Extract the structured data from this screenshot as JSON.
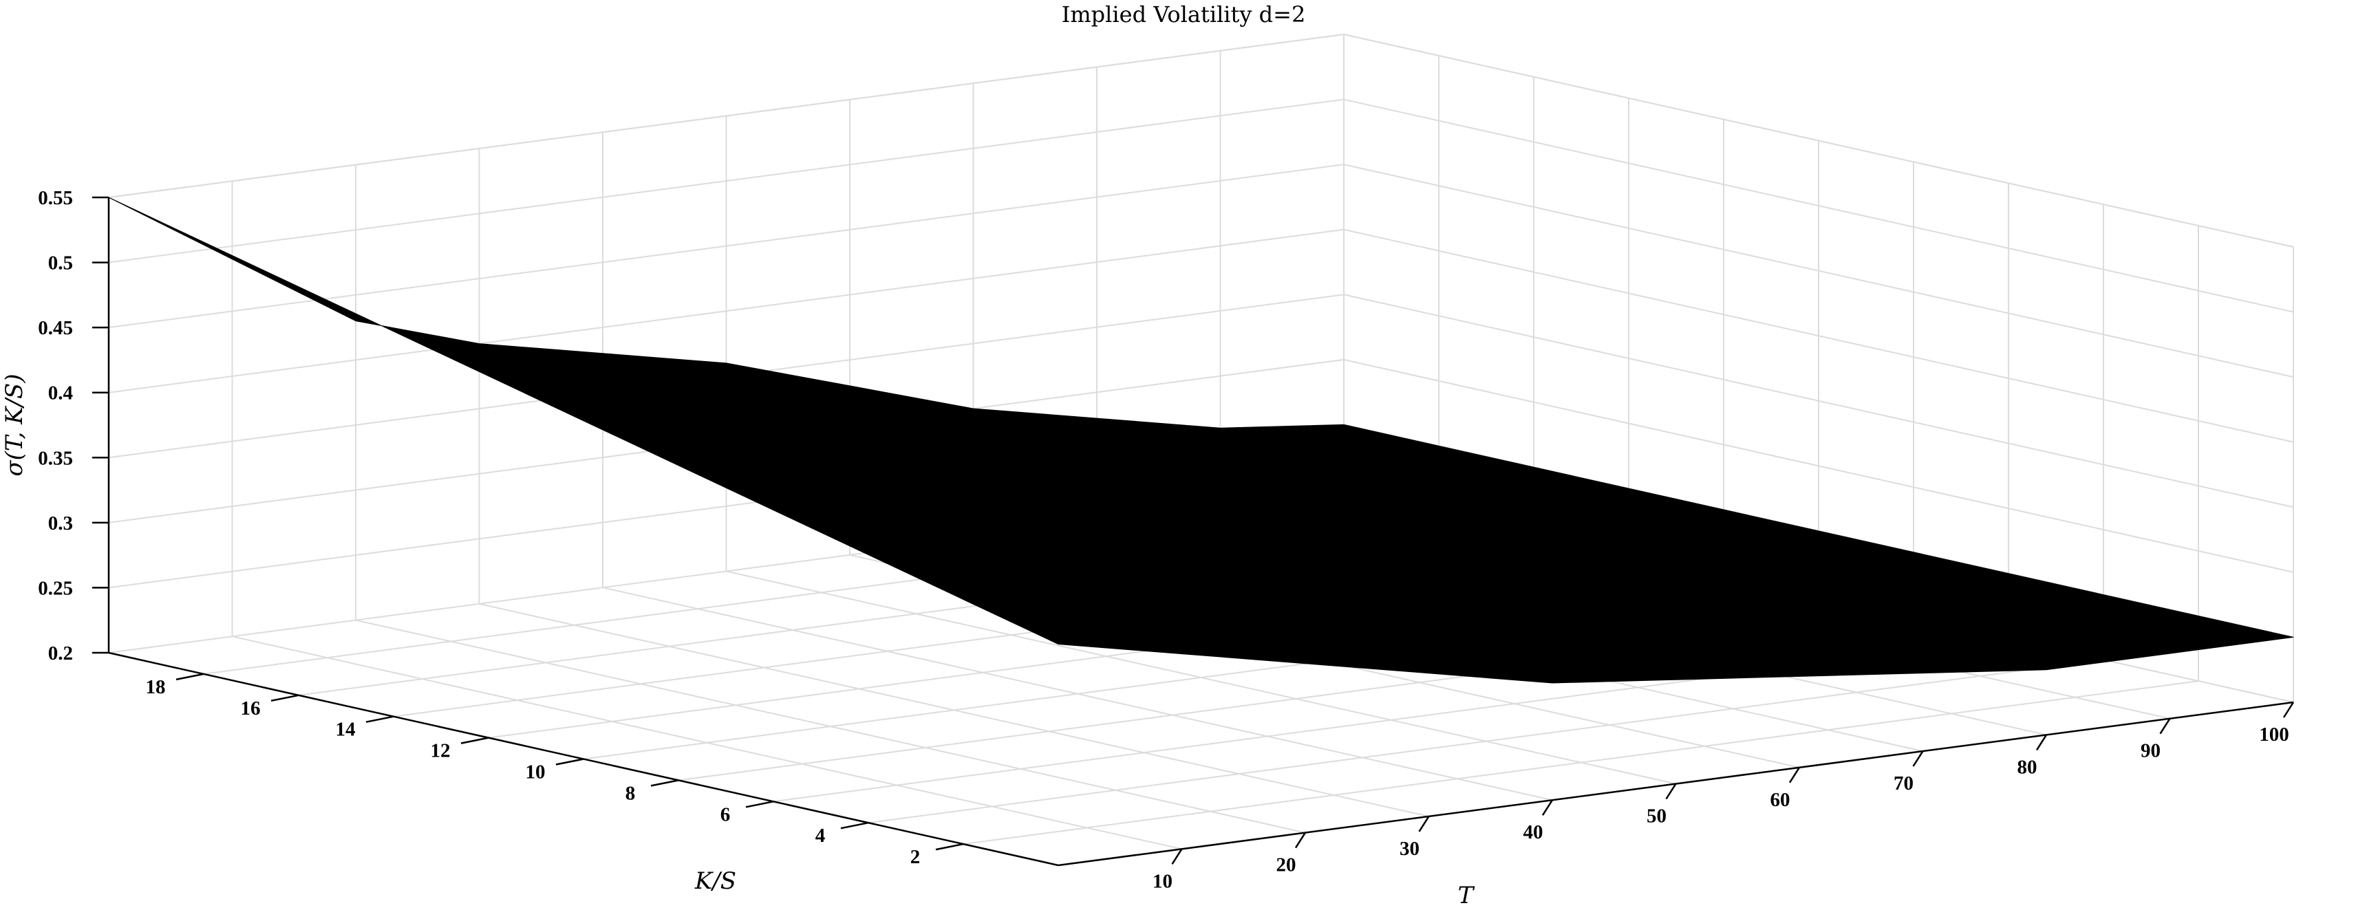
{
  "chart_data": {
    "type": "surface",
    "title": "Implied Volatility d=2",
    "xlabel": "T",
    "ylabel": "K/S",
    "zlabel": "σ(T, K/S)",
    "xlim": [
      0,
      100
    ],
    "ylim": [
      0,
      20
    ],
    "zlim": [
      0.2,
      0.55
    ],
    "x_ticks": [
      10,
      20,
      30,
      40,
      50,
      60,
      70,
      80,
      90,
      100
    ],
    "y_ticks": [
      2,
      4,
      6,
      8,
      10,
      12,
      14,
      16,
      18
    ],
    "z_ticks": [
      0.2,
      0.25,
      0.3,
      0.35,
      0.4,
      0.45,
      0.5,
      0.55
    ],
    "grid": true,
    "surface_color": "#000000",
    "T": [
      0,
      10,
      20,
      30,
      40,
      50,
      60,
      70,
      80,
      90,
      100
    ],
    "K_over_S": [
      0,
      20
    ],
    "sigma_at_K_over_S_20": [
      0.55,
      0.49,
      0.43,
      0.4,
      0.38,
      0.36,
      0.33,
      0.3,
      0.28,
      0.26,
      0.25
    ],
    "sigma_at_K_over_S_0": [
      0.37,
      0.35,
      0.33,
      0.31,
      0.29,
      0.28,
      0.27,
      0.26,
      0.25,
      0.25,
      0.25
    ]
  }
}
